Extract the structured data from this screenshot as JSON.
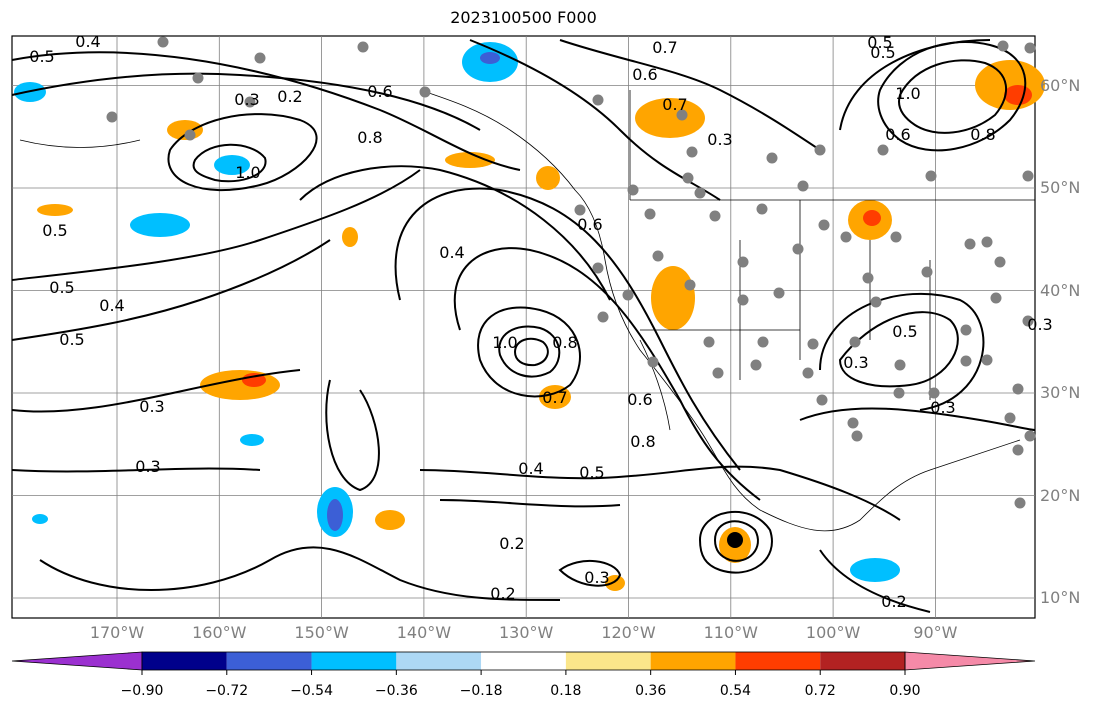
{
  "title": "2023100500 F000",
  "lon_labels": [
    {
      "text": "170°W",
      "lon": -170
    },
    {
      "text": "160°W",
      "lon": -160
    },
    {
      "text": "150°W",
      "lon": -150
    },
    {
      "text": "140°W",
      "lon": -140
    },
    {
      "text": "130°W",
      "lon": -130
    },
    {
      "text": "120°W",
      "lon": -120
    },
    {
      "text": "110°W",
      "lon": -110
    },
    {
      "text": "100°W",
      "lon": -100
    },
    {
      "text": "90°W",
      "lon": -90
    }
  ],
  "lat_labels": [
    {
      "text": "60°N",
      "lat": 60
    },
    {
      "text": "50°N",
      "lat": 50
    },
    {
      "text": "40°N",
      "lat": 40
    },
    {
      "text": "30°N",
      "lat": 30
    },
    {
      "text": "20°N",
      "lat": 20
    },
    {
      "text": "10°N",
      "lat": 10
    }
  ],
  "colorbar": {
    "ticks": [
      "−0.90",
      "−0.72",
      "−0.54",
      "−0.36",
      "−0.18",
      "0.18",
      "0.36",
      "0.54",
      "0.72",
      "0.90"
    ],
    "colors": [
      "#9b30d0",
      "#00008b",
      "#3c5fd6",
      "#00bfff",
      "#add8f5",
      "#ffffff",
      "#fbe68a",
      "#ffa500",
      "#ff3d00",
      "#b22222",
      "#f58aa8"
    ]
  },
  "contour_labels": [
    "0.4",
    "0.5",
    "0.6",
    "0.7",
    "0.6",
    "0.5",
    "0.8",
    "1.0",
    "0.5",
    "0.5",
    "0.4",
    "0.5",
    "0.3",
    "0.3",
    "0.4",
    "1.0",
    "0.8",
    "0.7",
    "0.6",
    "0.8",
    "0.4",
    "0.5",
    "0.2",
    "0.2",
    "0.3",
    "0.2",
    "0.3",
    "0.3",
    "0.5",
    "0.7",
    "1.0",
    "0.8",
    "0.6",
    "0.5",
    "0.3",
    "0.2",
    "0.3",
    "0.6",
    "0.3"
  ],
  "colors": {
    "grid": "#808080",
    "contour": "#000000",
    "axis_label": "#808080",
    "station_dot": "#808080"
  }
}
